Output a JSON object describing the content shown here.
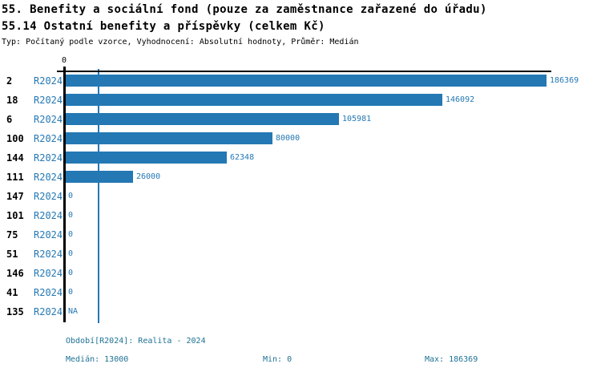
{
  "title": {
    "line1": "55. Benefity a sociální fond (pouze za zaměstnance zařazené do úřadu)",
    "line2": "55.14 Ostatní benefity a příspěvky (celkem Kč)",
    "meta": "Typ: Počítaný podle vzorce, Vyhodnocení: Absolutní hodnoty, Průměr: Medián"
  },
  "chart_data": {
    "type": "bar",
    "orientation": "horizontal",
    "axis_tick_label": "0",
    "period": "R2024",
    "categories": [
      "2",
      "18",
      "6",
      "100",
      "144",
      "111",
      "147",
      "101",
      "75",
      "51",
      "146",
      "41",
      "135"
    ],
    "values": [
      186369,
      146092,
      105981,
      80000,
      62348,
      26000,
      0,
      0,
      0,
      0,
      0,
      0,
      null
    ],
    "value_labels": [
      "186369",
      "146092",
      "105981",
      "80000",
      "62348",
      "26000",
      "0",
      "0",
      "0",
      "0",
      "0",
      "0",
      "NA"
    ],
    "median_value": 13000,
    "xlim": [
      0,
      186369
    ],
    "grid": false,
    "legend": "none",
    "bar_color": "#2478b4",
    "median_line_color": "#2478b4"
  },
  "footer": {
    "period_line": "Období[R2024]: Realita - 2024",
    "median": "Medián: 13000",
    "min": "Min: 0",
    "max": "Max: 186369"
  },
  "colors": {
    "accent": "#2478b4",
    "footer_text": "#1e7295",
    "axis": "#000000",
    "background": "#ffffff"
  }
}
